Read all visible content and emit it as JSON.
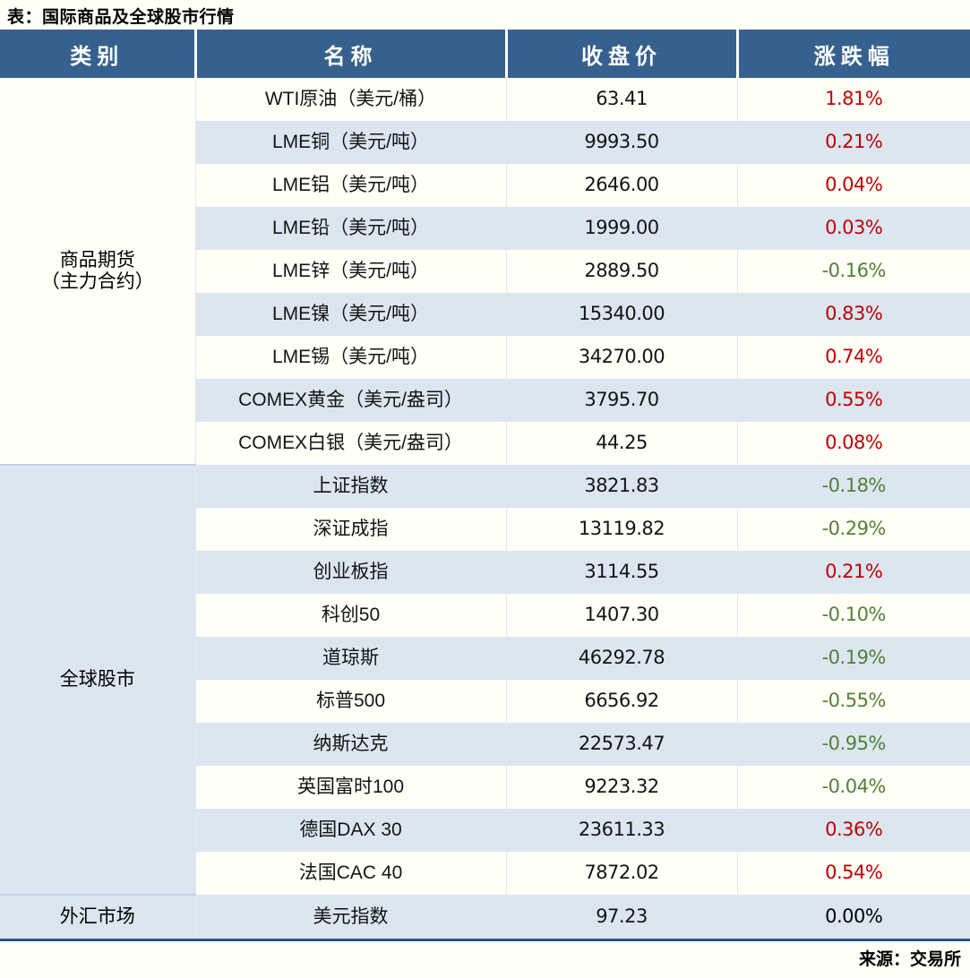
{
  "title": "表：国际商品及全球股市行情",
  "source": "来源：交易所",
  "table": {
    "headers": [
      "类别",
      "名称",
      "收盘价",
      "涨跌幅"
    ],
    "sections": [
      {
        "category": "商品期货（主力合约）",
        "category_lines": [
          "商品期货",
          "（主力合约）"
        ],
        "row_count": 9
      },
      {
        "category": "全球股市",
        "row_count": 10
      },
      {
        "category": "外汇市场",
        "row_count": 1
      }
    ]
  },
  "chart_data": {
    "type": "table",
    "columns": [
      "类别",
      "名称",
      "收盘价",
      "涨跌幅"
    ],
    "rows": [
      {
        "category": "商品期货（主力合约）",
        "name": "WTI原油（美元/桶）",
        "close": "63.41",
        "change": "1.81%",
        "direction": "up"
      },
      {
        "category": "商品期货（主力合约）",
        "name": "LME铜（美元/吨）",
        "close": "9993.50",
        "change": "0.21%",
        "direction": "up"
      },
      {
        "category": "商品期货（主力合约）",
        "name": "LME铝（美元/吨）",
        "close": "2646.00",
        "change": "0.04%",
        "direction": "up"
      },
      {
        "category": "商品期货（主力合约）",
        "name": "LME铅（美元/吨）",
        "close": "1999.00",
        "change": "0.03%",
        "direction": "up"
      },
      {
        "category": "商品期货（主力合约）",
        "name": "LME锌（美元/吨）",
        "close": "2889.50",
        "change": "-0.16%",
        "direction": "down"
      },
      {
        "category": "商品期货（主力合约）",
        "name": "LME镍（美元/吨）",
        "close": "15340.00",
        "change": "0.83%",
        "direction": "up"
      },
      {
        "category": "商品期货（主力合约）",
        "name": "LME锡（美元/吨）",
        "close": "34270.00",
        "change": "0.74%",
        "direction": "up"
      },
      {
        "category": "商品期货（主力合约）",
        "name": "COMEX黄金（美元/盎司）",
        "close": "3795.70",
        "change": "0.55%",
        "direction": "up"
      },
      {
        "category": "商品期货（主力合约）",
        "name": "COMEX白银（美元/盎司）",
        "close": "44.25",
        "change": "0.08%",
        "direction": "up"
      },
      {
        "category": "全球股市",
        "name": "上证指数",
        "close": "3821.83",
        "change": "-0.18%",
        "direction": "down"
      },
      {
        "category": "全球股市",
        "name": "深证成指",
        "close": "13119.82",
        "change": "-0.29%",
        "direction": "down"
      },
      {
        "category": "全球股市",
        "name": "创业板指",
        "close": "3114.55",
        "change": "0.21%",
        "direction": "up"
      },
      {
        "category": "全球股市",
        "name": "科创50",
        "close": "1407.30",
        "change": "-0.10%",
        "direction": "down"
      },
      {
        "category": "全球股市",
        "name": "道琼斯",
        "close": "46292.78",
        "change": "-0.19%",
        "direction": "down"
      },
      {
        "category": "全球股市",
        "name": "标普500",
        "close": "6656.92",
        "change": "-0.55%",
        "direction": "down"
      },
      {
        "category": "全球股市",
        "name": "纳斯达克",
        "close": "22573.47",
        "change": "-0.95%",
        "direction": "down"
      },
      {
        "category": "全球股市",
        "name": "英国富时100",
        "close": "9223.32",
        "change": "-0.04%",
        "direction": "down"
      },
      {
        "category": "全球股市",
        "name": "德国DAX 30",
        "close": "23611.33",
        "change": "0.36%",
        "direction": "up"
      },
      {
        "category": "全球股市",
        "name": "法国CAC 40",
        "close": "7872.02",
        "change": "0.54%",
        "direction": "up"
      },
      {
        "category": "外汇市场",
        "name": "美元指数",
        "close": "97.23",
        "change": "0.00%",
        "direction": "flat"
      }
    ]
  },
  "colors": {
    "header_bg": "#36618e",
    "stripe_bg": "#dce6f1",
    "up_red": "#c00000",
    "down_green": "#538135",
    "flat_black": "#000000",
    "table_bottom_border": "#2b5784"
  }
}
